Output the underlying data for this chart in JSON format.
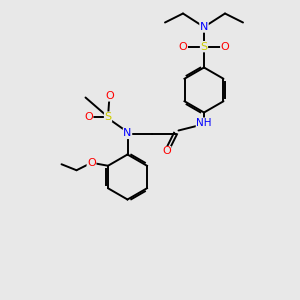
{
  "background_color": "#e8e8e8",
  "bond_color": "#000000",
  "atom_colors": {
    "N": "#0000ff",
    "O": "#ff0000",
    "S": "#cccc00",
    "H": "#5599aa",
    "C": "#000000"
  },
  "lw": 1.4,
  "fontsize": 7.5
}
